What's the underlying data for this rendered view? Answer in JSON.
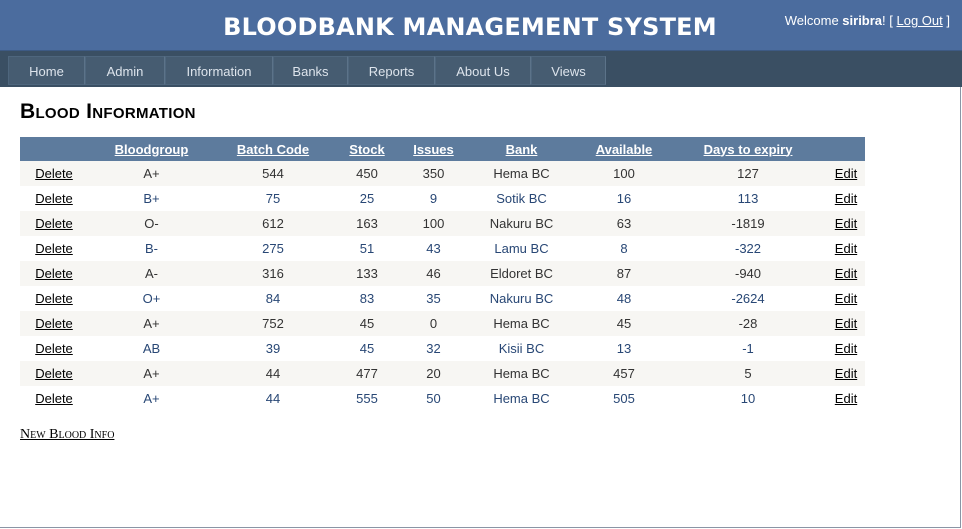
{
  "header": {
    "title": "BLOODBANK MANAGEMENT SYSTEM",
    "welcome_prefix": "Welcome ",
    "username": "siribra",
    "after_name": "! [ ",
    "logout_label": "Log Out",
    "close_bracket": " ]"
  },
  "nav": {
    "items": [
      {
        "label": "Home"
      },
      {
        "label": "Admin"
      },
      {
        "label": "Information"
      },
      {
        "label": "Banks"
      },
      {
        "label": "Reports"
      },
      {
        "label": "About Us"
      },
      {
        "label": "Views"
      }
    ]
  },
  "page": {
    "heading": "Blood Information",
    "new_link": "New Blood Info"
  },
  "table": {
    "headers": [
      "",
      "Bloodgroup",
      "Batch Code",
      "Stock",
      "Issues",
      "Bank",
      "Available",
      "Days to expiry",
      ""
    ],
    "delete_label": "Delete",
    "edit_label": "Edit",
    "rows": [
      [
        "A+",
        "544",
        "450",
        "350",
        "Hema BC",
        "100",
        "127"
      ],
      [
        "B+",
        "75",
        "25",
        "9",
        "Sotik BC",
        "16",
        "113"
      ],
      [
        "O-",
        "612",
        "163",
        "100",
        "Nakuru BC",
        "63",
        "-1819"
      ],
      [
        "B-",
        "275",
        "51",
        "43",
        "Lamu BC",
        "8",
        "-322"
      ],
      [
        "A-",
        "316",
        "133",
        "46",
        "Eldoret BC",
        "87",
        "-940"
      ],
      [
        "O+",
        "84",
        "83",
        "35",
        "Nakuru BC",
        "48",
        "-2624"
      ],
      [
        "A+",
        "752",
        "45",
        "0",
        "Hema BC",
        "45",
        "-28"
      ],
      [
        "AB",
        "39",
        "45",
        "32",
        "Kisii BC",
        "13",
        "-1"
      ],
      [
        "A+",
        "44",
        "477",
        "20",
        "Hema BC",
        "457",
        "5"
      ],
      [
        "A+",
        "44",
        "555",
        "50",
        "Hema BC",
        "505",
        "10"
      ]
    ]
  },
  "colors": {
    "header_bg": "#4b6c9e",
    "nav_bg": "#3a4f63",
    "table_header_bg": "#5d7b9d",
    "row_odd_bg": "#f7f6f3",
    "row_even_text": "#284775"
  }
}
